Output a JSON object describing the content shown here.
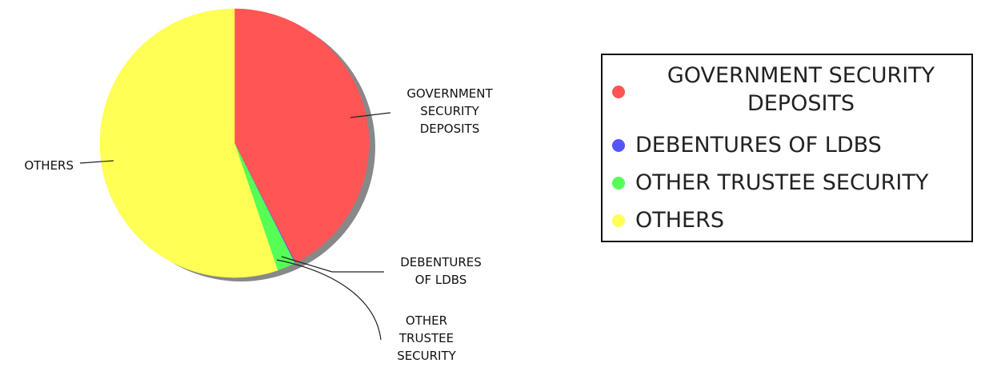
{
  "chart_data": {
    "type": "pie",
    "slices": [
      {
        "label": "GOVERNMENT SECURITY DEPOSITS",
        "value": 42.5,
        "color": "#ff5555"
      },
      {
        "label": "DEBENTURES OF LDBS",
        "value": 0.1,
        "color": "#5555ff"
      },
      {
        "label": "OTHER TRUSTEE SECURITY",
        "value": 2.2,
        "color": "#55ff55"
      },
      {
        "label": "OTHERS",
        "value": 55.2,
        "color": "#ffff55"
      }
    ],
    "slice_labels": [
      [
        "GOVERNMENT",
        "SECURITY",
        "DEPOSITS"
      ],
      [
        "DEBENTURES",
        "OF LDBS"
      ],
      [
        "OTHER",
        "TRUSTEE",
        "SECURITY"
      ],
      [
        "OTHERS"
      ]
    ],
    "legend": {
      "placement": "right",
      "entries": [
        [
          "GOVERNMENT SECURITY",
          "DEPOSITS"
        ],
        [
          "DEBENTURES OF LDBS"
        ],
        [
          "OTHER TRUSTEE SECURITY"
        ],
        [
          "OTHERS"
        ]
      ]
    },
    "shadow_color": "#888888",
    "start_angle": "12 o'clock",
    "direction": "clockwise"
  }
}
